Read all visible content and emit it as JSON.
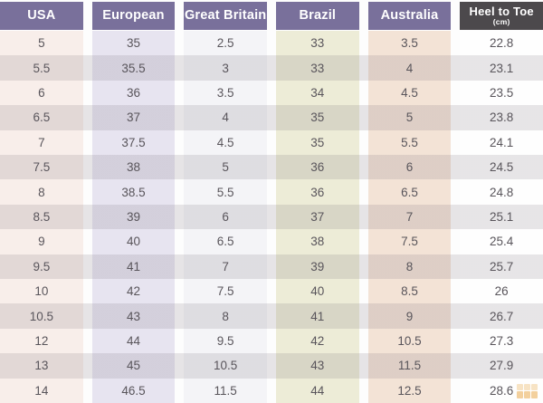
{
  "chart_data": {
    "type": "table",
    "columns": [
      {
        "label": "USA"
      },
      {
        "label": "European"
      },
      {
        "label": "Great Britain"
      },
      {
        "label": "Brazil"
      },
      {
        "label": "Australia"
      },
      {
        "label": "Heel to Toe",
        "sublabel": "(cm)"
      }
    ],
    "rows": [
      [
        "5",
        "35",
        "2.5",
        "33",
        "3.5",
        "22.8"
      ],
      [
        "5.5",
        "35.5",
        "3",
        "33",
        "4",
        "23.1"
      ],
      [
        "6",
        "36",
        "3.5",
        "34",
        "4.5",
        "23.5"
      ],
      [
        "6.5",
        "37",
        "4",
        "35",
        "5",
        "23.8"
      ],
      [
        "7",
        "37.5",
        "4.5",
        "35",
        "5.5",
        "24.1"
      ],
      [
        "7.5",
        "38",
        "5",
        "36",
        "6",
        "24.5"
      ],
      [
        "8",
        "38.5",
        "5.5",
        "36",
        "6.5",
        "24.8"
      ],
      [
        "8.5",
        "39",
        "6",
        "37",
        "7",
        "25.1"
      ],
      [
        "9",
        "40",
        "6.5",
        "38",
        "7.5",
        "25.4"
      ],
      [
        "9.5",
        "41",
        "7",
        "39",
        "8",
        "25.7"
      ],
      [
        "10",
        "42",
        "7.5",
        "40",
        "8.5",
        "26"
      ],
      [
        "10.5",
        "43",
        "8",
        "41",
        "9",
        "26.7"
      ],
      [
        "12",
        "44",
        "9.5",
        "42",
        "10.5",
        "27.3"
      ],
      [
        "13",
        "45",
        "10.5",
        "43",
        "11.5",
        "27.9"
      ],
      [
        "14",
        "46.5",
        "11.5",
        "44",
        "12.5",
        "28.6"
      ]
    ]
  },
  "colors": {
    "header_purple": "#79709b",
    "header_dark": "#4c494c",
    "col_usa": "#f8eeea",
    "col_european": "#e7e4f0",
    "col_great_britain": "#f4f4f7",
    "col_brazil": "#edecd7",
    "col_australia": "#f3e3d6",
    "col_heel_to_toe": "#fefefe",
    "row_stripe_overlay": "rgba(109,100,112,0.16)",
    "text": "#59555b",
    "watermark_orange": "#e9a43f"
  }
}
